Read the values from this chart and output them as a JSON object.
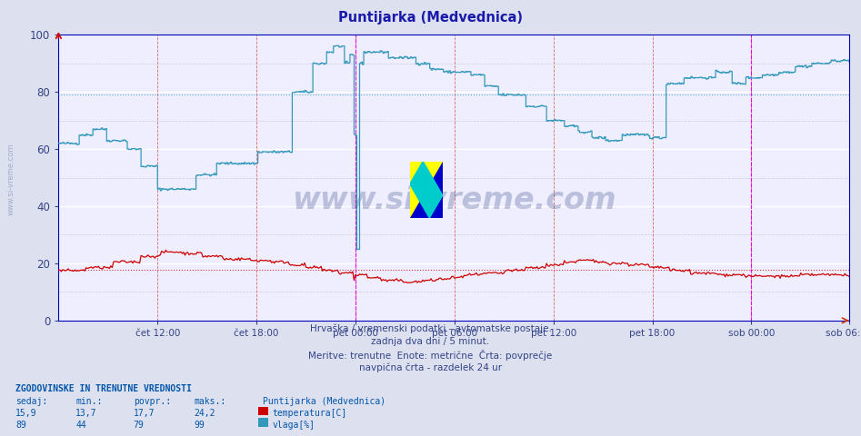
{
  "title": "Puntijarka (Medvednica)",
  "title_color": "#1a1aaa",
  "bg_color": "#dde0ee",
  "plot_bg_color": "#eeeeff",
  "grid_white": "#ffffff",
  "grid_light": "#ccccdd",
  "temp_color": "#cc0000",
  "humidity_color": "#3399bb",
  "avg_temp_color": "#dd8888",
  "avg_humidity_color": "#66bbcc",
  "vline_magenta": "#ee00ee",
  "vline_pink": "#dd6666",
  "xlabel_color": "#334488",
  "tick_color": "#334488",
  "text_color": "#334488",
  "watermark_color": "#223377",
  "sidebar_color": "#8899bb",
  "ylim": [
    0,
    100
  ],
  "yticks": [
    0,
    20,
    40,
    60,
    80,
    100
  ],
  "avg_temp": 17.7,
  "avg_humidity": 79,
  "xtick_labels": [
    "čet 12:00",
    "čet 18:00",
    "pet 00:00",
    "pet 06:00",
    "pet 12:00",
    "pet 18:00",
    "sob 00:00",
    "sob 06:00"
  ],
  "n_points": 576,
  "subtitle_lines": [
    "Hrvaška / vremenski podatki - avtomatske postaje.",
    "zadnja dva dni / 5 minut.",
    "Meritve: trenutne  Enote: metrične  Črta: povprečje",
    "navpična črta - razdelek 24 ur"
  ],
  "legend_title": "Puntijarka (Medvednica)",
  "table_header": "ZGODOVINSKE IN TRENUTNE VREDNOSTI",
  "table_cols": [
    "sedaj:",
    "min.:",
    "povpr.:",
    "maks.:"
  ],
  "table_row_temp": [
    "15,9",
    "13,7",
    "17,7",
    "24,2"
  ],
  "table_row_hum": [
    "89",
    "44",
    "79",
    "99"
  ],
  "legend_temp_label": "temperatura[C]",
  "legend_hum_label": "vlaga[%]",
  "legend_temp_color": "#cc0000",
  "legend_hum_color": "#3399bb"
}
